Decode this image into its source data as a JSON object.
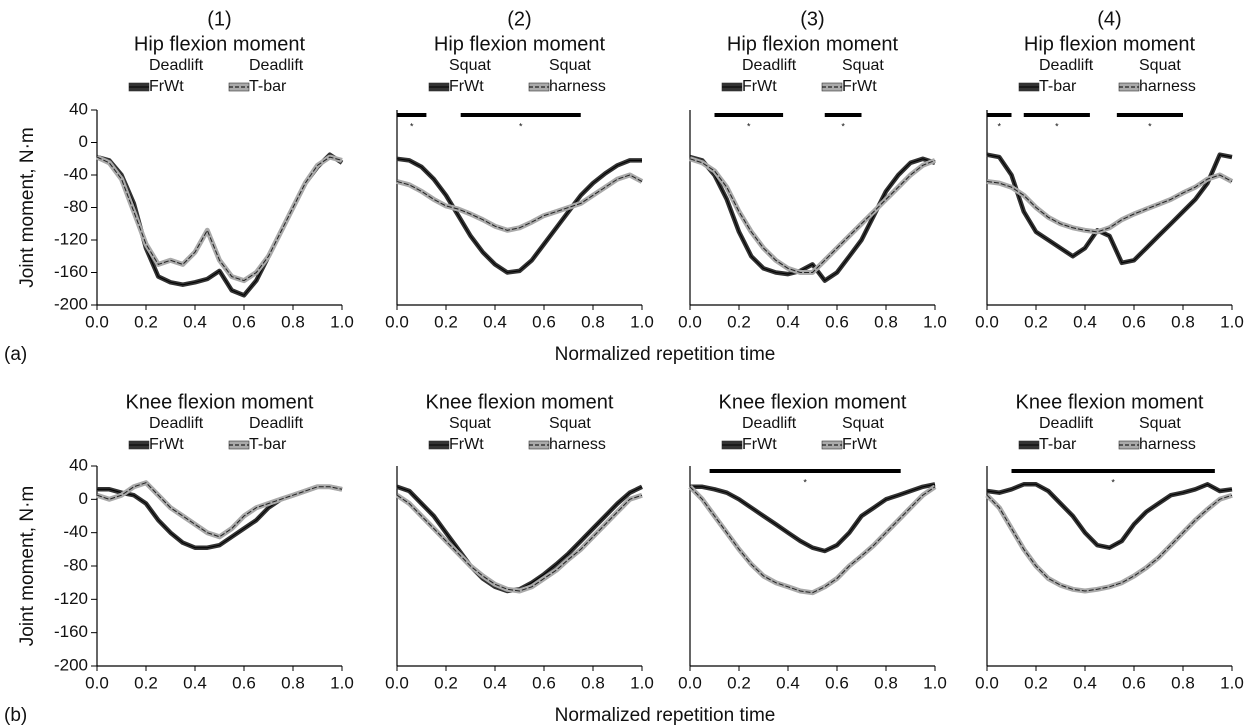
{
  "columns": [
    "(1)",
    "(2)",
    "(3)",
    "(4)"
  ],
  "rows": [
    {
      "label": "(a)",
      "y_label": "Joint moment, N·m",
      "x_label": "Normalized repetition time"
    },
    {
      "label": "(b)",
      "y_label": "Joint moment, N·m",
      "x_label": "Normalized repetition time"
    }
  ],
  "chart_data": [
    {
      "type": "line",
      "title": "Hip flexion moment",
      "x": [
        0,
        0.05,
        0.1,
        0.15,
        0.2,
        0.25,
        0.3,
        0.35,
        0.4,
        0.45,
        0.5,
        0.55,
        0.6,
        0.65,
        0.7,
        0.75,
        0.8,
        0.85,
        0.9,
        0.95,
        1
      ],
      "series": [
        {
          "name": "Deadlift\nFrWt",
          "color": "#333333",
          "values": [
            -18,
            -22,
            -40,
            -75,
            -130,
            -165,
            -172,
            -175,
            -172,
            -168,
            -158,
            -182,
            -188,
            -170,
            -140,
            -110,
            -80,
            -50,
            -30,
            -15,
            -25
          ]
        },
        {
          "name": "Deadlift\nT-bar",
          "color": "#aaaaaa",
          "values": [
            -18,
            -25,
            -45,
            -85,
            -125,
            -150,
            -145,
            -150,
            -135,
            -108,
            -145,
            -165,
            -170,
            -160,
            -140,
            -110,
            -80,
            -50,
            -28,
            -18,
            -22
          ]
        }
      ],
      "xlim": [
        0,
        1
      ],
      "ylim": [
        -200,
        40
      ],
      "xticks": [
        {
          "value": 0,
          "label": "0.0"
        },
        {
          "value": 0.2,
          "label": "0.2"
        },
        {
          "value": 0.4,
          "label": "0.4"
        },
        {
          "value": 0.6,
          "label": "0.6"
        },
        {
          "value": 0.8,
          "label": "0.8"
        },
        {
          "value": 1,
          "label": "1.0"
        }
      ],
      "yticks": [
        40,
        0,
        -40,
        -80,
        -120,
        -160,
        -200
      ],
      "significance": []
    },
    {
      "type": "line",
      "title": "Hip flexion moment",
      "x": [
        0,
        0.05,
        0.1,
        0.15,
        0.2,
        0.25,
        0.3,
        0.35,
        0.4,
        0.45,
        0.5,
        0.55,
        0.6,
        0.65,
        0.7,
        0.75,
        0.8,
        0.85,
        0.9,
        0.95,
        1
      ],
      "series": [
        {
          "name": "Squat\nFrWt",
          "color": "#333333",
          "values": [
            -20,
            -22,
            -30,
            -45,
            -65,
            -90,
            -115,
            -135,
            -150,
            -160,
            -158,
            -145,
            -125,
            -105,
            -85,
            -65,
            -50,
            -38,
            -28,
            -22,
            -22
          ]
        },
        {
          "name": "Squat\nharness",
          "color": "#aaaaaa",
          "values": [
            -48,
            -52,
            -60,
            -70,
            -78,
            -82,
            -88,
            -95,
            -103,
            -108,
            -105,
            -98,
            -90,
            -85,
            -80,
            -75,
            -65,
            -55,
            -45,
            -40,
            -48
          ]
        }
      ],
      "xlim": [
        0,
        1
      ],
      "ylim": [
        -200,
        40
      ],
      "xticks": [
        {
          "value": 0,
          "label": "0.0"
        },
        {
          "value": 0.2,
          "label": "0.2"
        },
        {
          "value": 0.4,
          "label": "0.4"
        },
        {
          "value": 0.6,
          "label": "0.6"
        },
        {
          "value": 0.8,
          "label": "0.8"
        },
        {
          "value": 1,
          "label": "1.0"
        }
      ],
      "significance": [
        {
          "range": [
            0,
            0.12
          ],
          "label": "*"
        },
        {
          "range": [
            0.26,
            0.75
          ],
          "label": "*"
        }
      ]
    },
    {
      "type": "line",
      "title": "Hip flexion moment",
      "x": [
        0,
        0.05,
        0.1,
        0.15,
        0.2,
        0.25,
        0.3,
        0.35,
        0.4,
        0.45,
        0.5,
        0.55,
        0.6,
        0.65,
        0.7,
        0.75,
        0.8,
        0.85,
        0.9,
        0.95,
        1
      ],
      "series": [
        {
          "name": "Deadlift\nFrWt",
          "color": "#333333",
          "values": [
            -18,
            -22,
            -40,
            -70,
            -110,
            -140,
            -155,
            -160,
            -162,
            -158,
            -150,
            -170,
            -160,
            -140,
            -120,
            -90,
            -60,
            -40,
            -25,
            -20,
            -25
          ]
        },
        {
          "name": "Squat\nFrWt",
          "color": "#aaaaaa",
          "values": [
            -20,
            -25,
            -35,
            -55,
            -85,
            -110,
            -130,
            -145,
            -155,
            -160,
            -160,
            -145,
            -130,
            -115,
            -100,
            -85,
            -70,
            -55,
            -40,
            -28,
            -22
          ]
        }
      ],
      "xlim": [
        0,
        1
      ],
      "ylim": [
        -200,
        40
      ],
      "xticks": [
        {
          "value": 0,
          "label": "0.0"
        },
        {
          "value": 0.2,
          "label": "0.2"
        },
        {
          "value": 0.4,
          "label": "0.4"
        },
        {
          "value": 0.6,
          "label": "0.6"
        },
        {
          "value": 0.8,
          "label": "0.8"
        },
        {
          "value": 1,
          "label": "1.0"
        }
      ],
      "significance": [
        {
          "range": [
            0.1,
            0.38
          ],
          "label": "*"
        },
        {
          "range": [
            0.55,
            0.7
          ],
          "label": "*"
        }
      ]
    },
    {
      "type": "line",
      "title": "Hip flexion moment",
      "x": [
        0,
        0.05,
        0.1,
        0.15,
        0.2,
        0.25,
        0.3,
        0.35,
        0.4,
        0.45,
        0.5,
        0.55,
        0.6,
        0.65,
        0.7,
        0.75,
        0.8,
        0.85,
        0.9,
        0.95,
        1
      ],
      "series": [
        {
          "name": "Deadlift\nT-bar",
          "color": "#333333",
          "values": [
            -15,
            -18,
            -40,
            -85,
            -110,
            -120,
            -130,
            -140,
            -130,
            -108,
            -115,
            -148,
            -145,
            -130,
            -115,
            -100,
            -85,
            -70,
            -50,
            -15,
            -18
          ]
        },
        {
          "name": "Squat\nharness",
          "color": "#aaaaaa",
          "values": [
            -48,
            -50,
            -55,
            -65,
            -80,
            -92,
            -100,
            -105,
            -108,
            -110,
            -105,
            -95,
            -88,
            -82,
            -76,
            -70,
            -62,
            -55,
            -45,
            -40,
            -48
          ]
        }
      ],
      "xlim": [
        0,
        1
      ],
      "ylim": [
        -200,
        40
      ],
      "xticks": [
        {
          "value": 0,
          "label": "0.0"
        },
        {
          "value": 0.2,
          "label": "0.2"
        },
        {
          "value": 0.4,
          "label": "0.4"
        },
        {
          "value": 0.6,
          "label": "0.6"
        },
        {
          "value": 0.8,
          "label": "0.8"
        },
        {
          "value": 1,
          "label": "1.0"
        }
      ],
      "significance": [
        {
          "range": [
            0,
            0.1
          ],
          "label": "*"
        },
        {
          "range": [
            0.15,
            0.42
          ],
          "label": "*"
        },
        {
          "range": [
            0.53,
            0.8
          ],
          "label": "*"
        }
      ]
    },
    {
      "type": "line",
      "title": "Knee flexion moment",
      "x": [
        0,
        0.05,
        0.1,
        0.15,
        0.2,
        0.25,
        0.3,
        0.35,
        0.4,
        0.45,
        0.5,
        0.55,
        0.6,
        0.65,
        0.7,
        0.75,
        0.8,
        0.85,
        0.9,
        0.95,
        1
      ],
      "series": [
        {
          "name": "Deadlift\nFrWt",
          "color": "#333333",
          "values": [
            12,
            12,
            8,
            5,
            -5,
            -25,
            -40,
            -52,
            -58,
            -58,
            -55,
            -45,
            -35,
            -25,
            -10,
            0,
            5,
            10,
            15,
            15,
            12
          ]
        },
        {
          "name": "Deadlift\nT-bar",
          "color": "#aaaaaa",
          "values": [
            5,
            0,
            5,
            15,
            20,
            5,
            -10,
            -20,
            -30,
            -40,
            -45,
            -35,
            -20,
            -10,
            -5,
            0,
            5,
            10,
            15,
            15,
            12
          ]
        }
      ],
      "xlim": [
        0,
        1
      ],
      "ylim": [
        -200,
        40
      ],
      "xticks": [
        {
          "value": 0,
          "label": "0.0"
        },
        {
          "value": 0.2,
          "label": "0.2"
        },
        {
          "value": 0.4,
          "label": "0.4"
        },
        {
          "value": 0.6,
          "label": "0.6"
        },
        {
          "value": 0.8,
          "label": "0.8"
        },
        {
          "value": 1,
          "label": "1.0"
        }
      ],
      "yticks": [
        40,
        0,
        -40,
        -80,
        -120,
        -160,
        -200
      ],
      "significance": []
    },
    {
      "type": "line",
      "title": "Knee flexion moment",
      "x": [
        0,
        0.05,
        0.1,
        0.15,
        0.2,
        0.25,
        0.3,
        0.35,
        0.4,
        0.45,
        0.5,
        0.55,
        0.6,
        0.65,
        0.7,
        0.75,
        0.8,
        0.85,
        0.9,
        0.95,
        1
      ],
      "series": [
        {
          "name": "Squat\nFrWt",
          "color": "#333333",
          "values": [
            15,
            10,
            -5,
            -20,
            -40,
            -60,
            -80,
            -95,
            -105,
            -110,
            -108,
            -100,
            -90,
            -78,
            -65,
            -50,
            -35,
            -20,
            -5,
            8,
            15
          ]
        },
        {
          "name": "Squat\nharness",
          "color": "#aaaaaa",
          "values": [
            5,
            -5,
            -20,
            -35,
            -50,
            -65,
            -80,
            -92,
            -102,
            -108,
            -110,
            -105,
            -95,
            -85,
            -72,
            -60,
            -45,
            -30,
            -15,
            0,
            5
          ]
        }
      ],
      "xlim": [
        0,
        1
      ],
      "ylim": [
        -200,
        40
      ],
      "xticks": [
        {
          "value": 0,
          "label": "0.0"
        },
        {
          "value": 0.2,
          "label": "0.2"
        },
        {
          "value": 0.4,
          "label": "0.4"
        },
        {
          "value": 0.6,
          "label": "0.6"
        },
        {
          "value": 0.8,
          "label": "0.8"
        },
        {
          "value": 1,
          "label": "1.0"
        }
      ],
      "significance": []
    },
    {
      "type": "line",
      "title": "Knee flexion moment",
      "x": [
        0,
        0.05,
        0.1,
        0.15,
        0.2,
        0.25,
        0.3,
        0.35,
        0.4,
        0.45,
        0.5,
        0.55,
        0.6,
        0.65,
        0.7,
        0.75,
        0.8,
        0.85,
        0.9,
        0.95,
        1
      ],
      "series": [
        {
          "name": "Deadlift\nFrWt",
          "color": "#333333",
          "values": [
            15,
            15,
            12,
            8,
            0,
            -10,
            -20,
            -30,
            -40,
            -50,
            -58,
            -62,
            -55,
            -40,
            -20,
            -10,
            0,
            5,
            10,
            15,
            18
          ]
        },
        {
          "name": "Squat\nFrWt",
          "color": "#aaaaaa",
          "values": [
            15,
            0,
            -20,
            -40,
            -60,
            -78,
            -92,
            -100,
            -105,
            -110,
            -112,
            -105,
            -95,
            -80,
            -68,
            -55,
            -40,
            -25,
            -10,
            5,
            15
          ]
        }
      ],
      "xlim": [
        0,
        1
      ],
      "ylim": [
        -200,
        40
      ],
      "xticks": [
        {
          "value": 0,
          "label": "0.0"
        },
        {
          "value": 0.2,
          "label": "0.2"
        },
        {
          "value": 0.4,
          "label": "0.4"
        },
        {
          "value": 0.6,
          "label": "0.6"
        },
        {
          "value": 0.8,
          "label": "0.8"
        },
        {
          "value": 1,
          "label": "1.0"
        }
      ],
      "significance": [
        {
          "range": [
            0.08,
            0.86
          ],
          "label": "*"
        }
      ]
    },
    {
      "type": "line",
      "title": "Knee flexion moment",
      "x": [
        0,
        0.05,
        0.1,
        0.15,
        0.2,
        0.25,
        0.3,
        0.35,
        0.4,
        0.45,
        0.5,
        0.55,
        0.6,
        0.65,
        0.7,
        0.75,
        0.8,
        0.85,
        0.9,
        0.95,
        1
      ],
      "series": [
        {
          "name": "Deadlift\nT-bar",
          "color": "#333333",
          "values": [
            10,
            8,
            12,
            18,
            18,
            10,
            -5,
            -20,
            -40,
            -55,
            -58,
            -50,
            -30,
            -15,
            -5,
            5,
            8,
            12,
            18,
            10,
            12
          ]
        },
        {
          "name": "Squat\nharness",
          "color": "#aaaaaa",
          "values": [
            5,
            -10,
            -35,
            -60,
            -80,
            -95,
            -103,
            -108,
            -110,
            -108,
            -105,
            -100,
            -92,
            -82,
            -70,
            -55,
            -40,
            -25,
            -12,
            0,
            5
          ]
        }
      ],
      "xlim": [
        0,
        1
      ],
      "ylim": [
        -200,
        40
      ],
      "xticks": [
        {
          "value": 0,
          "label": "0.0"
        },
        {
          "value": 0.2,
          "label": "0.2"
        },
        {
          "value": 0.4,
          "label": "0.4"
        },
        {
          "value": 0.6,
          "label": "0.6"
        },
        {
          "value": 0.8,
          "label": "0.8"
        },
        {
          "value": 1,
          "label": "1.0"
        }
      ],
      "significance": [
        {
          "range": [
            0.1,
            0.93
          ],
          "label": "*"
        }
      ]
    }
  ]
}
